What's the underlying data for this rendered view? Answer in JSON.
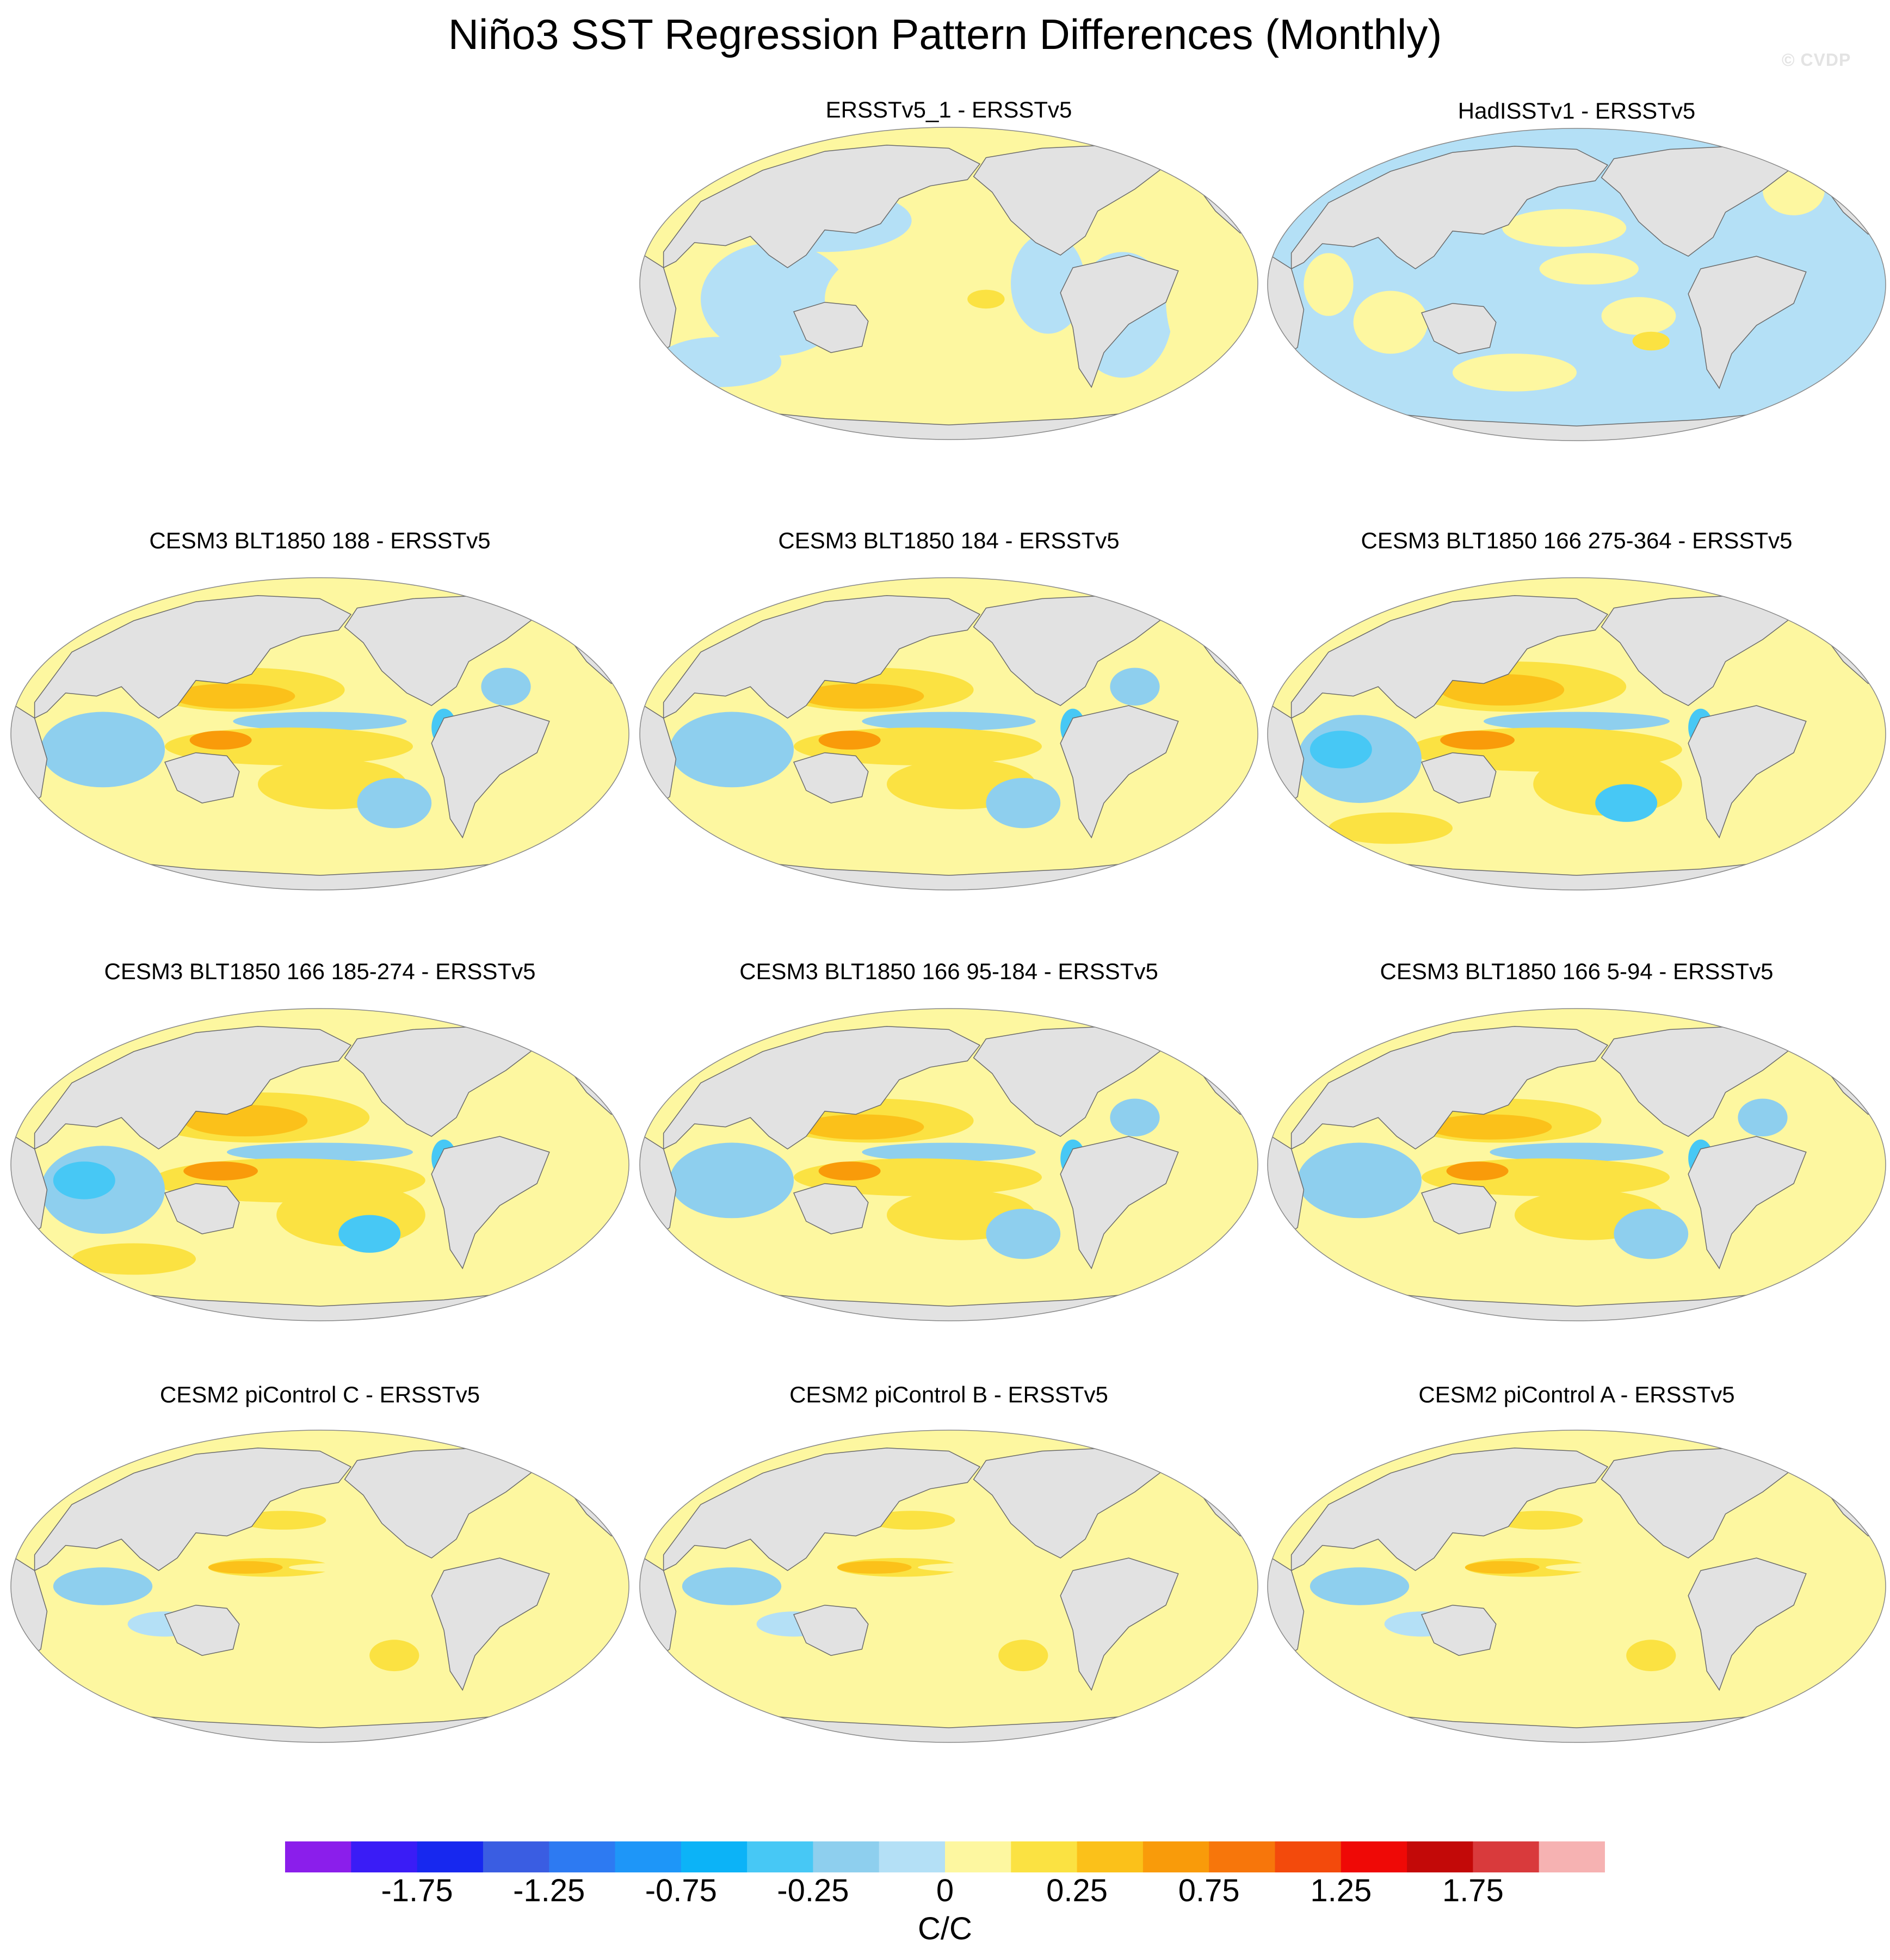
{
  "chart_data": {
    "type": "contour-map-panels",
    "title": "Niño3 SST Regression Pattern Differences (Monthly)",
    "watermark": "© CVDP",
    "units": "C/C",
    "colorbar": {
      "colors": [
        "#8b1eeb",
        "#3a1cf6",
        "#1728ef",
        "#3a5de2",
        "#2d7af2",
        "#1e96f8",
        "#0cb3f7",
        "#47c8f5",
        "#8ecfee",
        "#b4e0f6",
        "#fdf7a0",
        "#fbe242",
        "#fbc11a",
        "#f99b0a",
        "#f7760b",
        "#f34a0c",
        "#ef0906",
        "#c30908",
        "#d93a3c",
        "#f6b2b2"
      ],
      "tick_labels": [
        "-1.75",
        "-1.25",
        "-0.75",
        "-0.25",
        "0",
        "0.25",
        "0.75",
        "1.25",
        "1.75"
      ],
      "levels": [
        -2.0,
        -1.75,
        -1.5,
        -1.25,
        -1.0,
        -0.75,
        -0.5,
        -0.25,
        0,
        0.25,
        0.5,
        0.75,
        1.0,
        1.25,
        1.5,
        1.75,
        2.0
      ]
    },
    "panels": [
      {
        "title": "ERSSTv5_1 - ERSSTv5",
        "pattern": "obs1"
      },
      {
        "title": "HadISSTv1 - ERSSTv5",
        "pattern": "obs2"
      },
      {
        "title": "CESM3 BLT1850 188 - ERSSTv5",
        "pattern": "model"
      },
      {
        "title": "CESM3 BLT1850 184 - ERSSTv5",
        "pattern": "model"
      },
      {
        "title": "CESM3 BLT1850 166 275-364 - ERSSTv5",
        "pattern": "model-strong"
      },
      {
        "title": "CESM3 BLT1850 166 185-274 - ERSSTv5",
        "pattern": "model-strong"
      },
      {
        "title": "CESM3 BLT1850 166 95-184 - ERSSTv5",
        "pattern": "model"
      },
      {
        "title": "CESM3 BLT1850 166 5-94 - ERSSTv5",
        "pattern": "model"
      },
      {
        "title": "CESM2 piControl C - ERSSTv5",
        "pattern": "cesm2"
      },
      {
        "title": "CESM2 piControl B - ERSSTv5",
        "pattern": "cesm2"
      },
      {
        "title": "CESM2 piControl A - ERSSTv5",
        "pattern": "cesm2"
      }
    ]
  }
}
